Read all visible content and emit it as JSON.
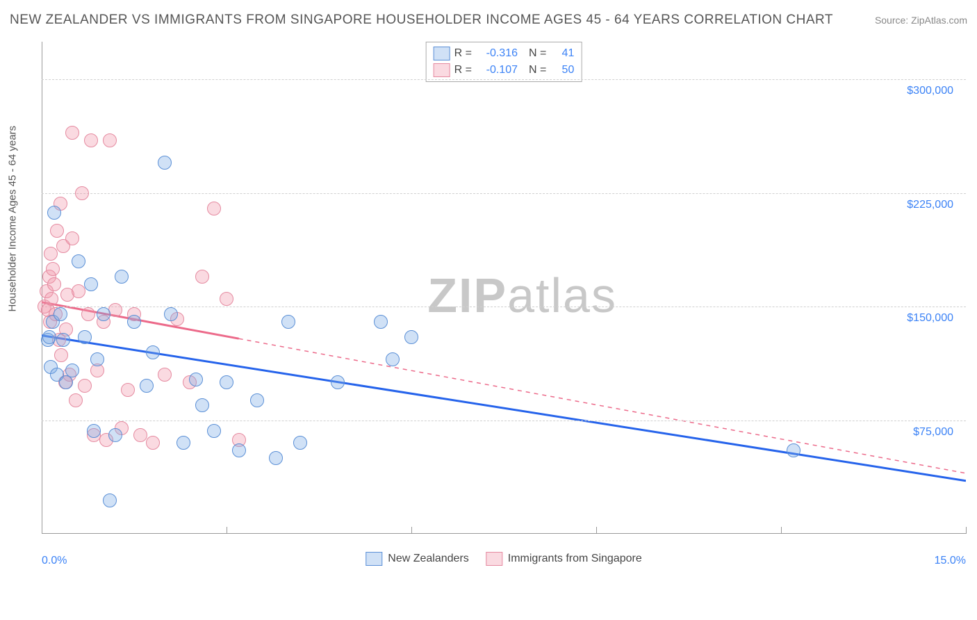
{
  "title": "NEW ZEALANDER VS IMMIGRANTS FROM SINGAPORE HOUSEHOLDER INCOME AGES 45 - 64 YEARS CORRELATION CHART",
  "source": "Source: ZipAtlas.com",
  "y_axis_label": "Householder Income Ages 45 - 64 years",
  "watermark_bold": "ZIP",
  "watermark_light": "atlas",
  "chart": {
    "type": "scatter",
    "xlim": [
      0,
      15
    ],
    "ylim": [
      0,
      325000
    ],
    "x_ticks": [
      0,
      3,
      6,
      9,
      12,
      15
    ],
    "x_tick_labels": [
      "0.0%",
      "",
      "",
      "",
      "",
      "15.0%"
    ],
    "y_ticks": [
      75000,
      150000,
      225000,
      300000
    ],
    "y_tick_labels": [
      "$75,000",
      "$150,000",
      "$225,000",
      "$300,000"
    ],
    "grid_color": "#d0d0d0",
    "background": "#ffffff",
    "point_radius": 9,
    "series": [
      {
        "name": "New Zealanders",
        "fill": "rgba(120,170,230,0.35)",
        "stroke": "#5a8fd6",
        "R": "-0.316",
        "N": "41",
        "trend": {
          "x0": 0,
          "y0": 131000,
          "x1": 15,
          "y1": 35000,
          "solid_until_x": 15
        },
        "points": [
          [
            0.1,
            128000
          ],
          [
            0.12,
            130000
          ],
          [
            0.15,
            110000
          ],
          [
            0.18,
            140000
          ],
          [
            0.2,
            212000
          ],
          [
            0.25,
            105000
          ],
          [
            0.3,
            145000
          ],
          [
            0.35,
            128000
          ],
          [
            0.4,
            100000
          ],
          [
            0.5,
            108000
          ],
          [
            0.6,
            180000
          ],
          [
            0.7,
            130000
          ],
          [
            0.8,
            165000
          ],
          [
            0.85,
            68000
          ],
          [
            0.9,
            115000
          ],
          [
            1.0,
            145000
          ],
          [
            1.1,
            22000
          ],
          [
            1.2,
            65000
          ],
          [
            1.3,
            170000
          ],
          [
            1.5,
            140000
          ],
          [
            1.7,
            98000
          ],
          [
            1.8,
            120000
          ],
          [
            2.0,
            245000
          ],
          [
            2.1,
            145000
          ],
          [
            2.3,
            60000
          ],
          [
            2.5,
            102000
          ],
          [
            2.6,
            85000
          ],
          [
            2.8,
            68000
          ],
          [
            3.0,
            100000
          ],
          [
            3.2,
            55000
          ],
          [
            3.5,
            88000
          ],
          [
            3.8,
            50000
          ],
          [
            4.0,
            140000
          ],
          [
            4.2,
            60000
          ],
          [
            4.8,
            100000
          ],
          [
            5.5,
            140000
          ],
          [
            5.7,
            115000
          ],
          [
            6.0,
            130000
          ],
          [
            12.2,
            55000
          ]
        ]
      },
      {
        "name": "Immigrants from Singapore",
        "fill": "rgba(240,150,170,0.35)",
        "stroke": "#e58aa0",
        "R": "-0.107",
        "N": "50",
        "trend": {
          "x0": 0,
          "y0": 153000,
          "x1": 15,
          "y1": 40000,
          "solid_until_x": 3.2
        },
        "points": [
          [
            0.05,
            150000
          ],
          [
            0.08,
            160000
          ],
          [
            0.1,
            148000
          ],
          [
            0.12,
            170000
          ],
          [
            0.14,
            140000
          ],
          [
            0.15,
            185000
          ],
          [
            0.16,
            155000
          ],
          [
            0.18,
            175000
          ],
          [
            0.2,
            165000
          ],
          [
            0.22,
            145000
          ],
          [
            0.25,
            200000
          ],
          [
            0.28,
            128000
          ],
          [
            0.3,
            218000
          ],
          [
            0.32,
            118000
          ],
          [
            0.35,
            190000
          ],
          [
            0.38,
            100000
          ],
          [
            0.4,
            135000
          ],
          [
            0.42,
            158000
          ],
          [
            0.45,
            105000
          ],
          [
            0.5,
            195000
          ],
          [
            0.5,
            265000
          ],
          [
            0.55,
            88000
          ],
          [
            0.6,
            160000
          ],
          [
            0.65,
            225000
          ],
          [
            0.7,
            98000
          ],
          [
            0.75,
            145000
          ],
          [
            0.8,
            260000
          ],
          [
            0.85,
            65000
          ],
          [
            0.9,
            108000
          ],
          [
            1.0,
            140000
          ],
          [
            1.05,
            62000
          ],
          [
            1.1,
            260000
          ],
          [
            1.2,
            148000
          ],
          [
            1.3,
            70000
          ],
          [
            1.4,
            95000
          ],
          [
            1.5,
            145000
          ],
          [
            1.6,
            65000
          ],
          [
            1.8,
            60000
          ],
          [
            2.0,
            105000
          ],
          [
            2.2,
            142000
          ],
          [
            2.4,
            100000
          ],
          [
            2.6,
            170000
          ],
          [
            2.8,
            215000
          ],
          [
            3.0,
            155000
          ],
          [
            3.2,
            62000
          ]
        ]
      }
    ]
  },
  "colors": {
    "tick_text": "#3b82f6",
    "title_text": "#555555",
    "trend_blue": "#2563eb",
    "trend_pink": "#ec6a8a"
  }
}
